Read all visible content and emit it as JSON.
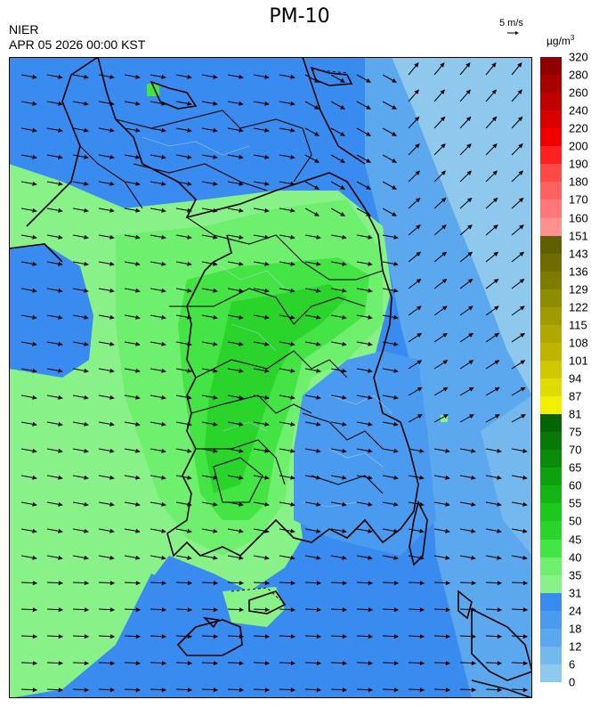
{
  "header": {
    "title": "PM-10",
    "agency": "NIER",
    "datetime": "APR 05 2026 00:00 KST",
    "wind_reference": "5 m/s",
    "unit": "µg/m",
    "unit_exponent": "3"
  },
  "legend": {
    "labels_bottom_to_top": [
      "0",
      "6",
      "12",
      "18",
      "24",
      "31",
      "35",
      "40",
      "45",
      "50",
      "55",
      "60",
      "65",
      "70",
      "75",
      "81",
      "87",
      "94",
      "101",
      "108",
      "115",
      "122",
      "129",
      "136",
      "143",
      "151",
      "160",
      "170",
      "180",
      "190",
      "200",
      "220",
      "240",
      "260",
      "280",
      "320"
    ],
    "colors_bottom_to_top": [
      "#8ec8ec",
      "#75b8ee",
      "#5ca8ef",
      "#4a9bf0",
      "#3a8bf0",
      "#88f288",
      "#6ef06e",
      "#44e444",
      "#2ad42a",
      "#1cc81c",
      "#14b414",
      "#0ea00e",
      "#0a8c0a",
      "#087808",
      "#066406",
      "#f0f000",
      "#e0dc00",
      "#d0c800",
      "#c0b400",
      "#b0a800",
      "#a09c00",
      "#908c00",
      "#807c00",
      "#706c00",
      "#606000",
      "#ff9090",
      "#ff7878",
      "#ff6060",
      "#ff4848",
      "#ff2020",
      "#f00000",
      "#d80000",
      "#c00000",
      "#a80000",
      "#900000",
      "#700000"
    ]
  },
  "colors": {
    "pm_31_35": "#88f288",
    "pm_35_40": "#6ef06e",
    "pm_40_45": "#44e444",
    "pm_45_50": "#2ad42a",
    "pm_24_31": "#3a8bf0",
    "pm_18_24": "#4a9bf0",
    "pm_12_18": "#5ca8ef",
    "pm_6_12": "#75b8ee",
    "pm_0_6": "#8ec8ec"
  }
}
